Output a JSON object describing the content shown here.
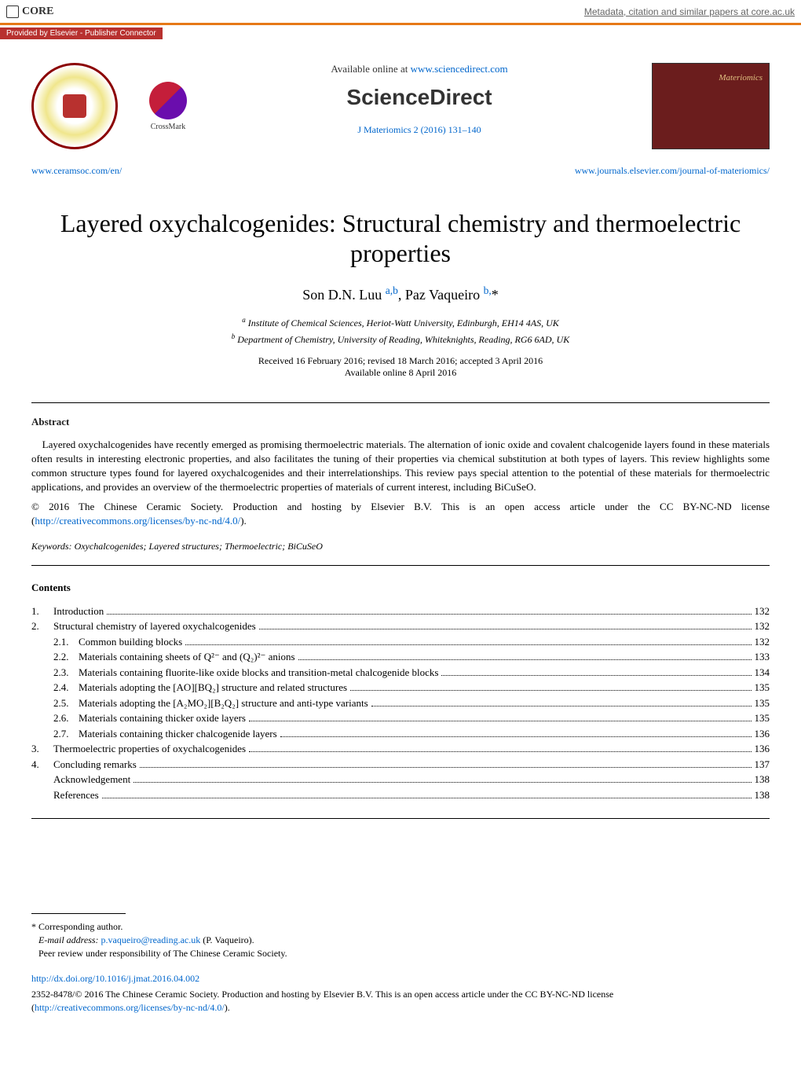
{
  "topBanner": {
    "coreLabel": "CORE",
    "metadataLink": "Metadata, citation and similar papers at core.ac.uk",
    "providedBy": "Provided by Elsevier - Publisher Connector"
  },
  "header": {
    "availableText": "Available online at ",
    "availableUrl": "www.sciencedirect.com",
    "scienceDirectLabel": "ScienceDirect",
    "journalRef": "J Materiomics 2 (2016) 131–140",
    "crossmarkLabel": "CrossMark",
    "leftLink": "www.ceramsoc.com/en/",
    "rightLink": "www.journals.elsevier.com/journal-of-materiomics/"
  },
  "article": {
    "title": "Layered oxychalcogenides: Structural chemistry and thermoelectric properties",
    "authors": {
      "author1": "Son D.N. Luu ",
      "author1aff": "a,b",
      "separator": ", ",
      "author2": "Paz Vaqueiro ",
      "author2aff": "b,",
      "corresponding": "*"
    },
    "affiliation_a": "a Institute of Chemical Sciences, Heriot-Watt University, Edinburgh, EH14 4AS, UK",
    "affiliation_b": "b Department of Chemistry, University of Reading, Whiteknights, Reading, RG6 6AD, UK",
    "dates": "Received 16 February 2016; revised 18 March 2016; accepted 3 April 2016",
    "availableOnline": "Available online 8 April 2016"
  },
  "abstract": {
    "heading": "Abstract",
    "text": "Layered oxychalcogenides have recently emerged as promising thermoelectric materials. The alternation of ionic oxide and covalent chalcogenide layers found in these materials often results in interesting electronic properties, and also facilitates the tuning of their properties via chemical substitution at both types of layers. This review highlights some common structure types found for layered oxychalcogenides and their interrelationships. This review pays special attention to the potential of these materials for thermoelectric applications, and provides an overview of the thermoelectric properties of materials of current interest, including BiCuSeO.",
    "copyright": "© 2016 The Chinese Ceramic Society. Production and hosting by Elsevier B.V. This is an open access article under the CC BY-NC-ND license (",
    "licenseUrl": "http://creativecommons.org/licenses/by-nc-nd/4.0/",
    "copyrightEnd": ")."
  },
  "keywords": {
    "label": "Keywords: ",
    "text": "Oxychalcogenides; Layered structures; Thermoelectric; BiCuSeO"
  },
  "contents": {
    "heading": "Contents",
    "items": [
      {
        "num": "1.",
        "title": "Introduction",
        "page": "132"
      },
      {
        "num": "2.",
        "title": "Structural chemistry of layered oxychalcogenides",
        "page": "132"
      },
      {
        "sub": true,
        "num": "2.1.",
        "title": "Common building blocks",
        "page": "132"
      },
      {
        "sub": true,
        "num": "2.2.",
        "title": "Materials containing sheets of Q²⁻ and (Q₂)²⁻ anions",
        "page": "133"
      },
      {
        "sub": true,
        "num": "2.3.",
        "title": "Materials containing fluorite-like oxide blocks and transition-metal chalcogenide blocks",
        "page": "134"
      },
      {
        "sub": true,
        "num": "2.4.",
        "title": "Materials adopting the [AO][BQ₂] structure and related structures",
        "page": "135"
      },
      {
        "sub": true,
        "num": "2.5.",
        "title": "Materials adopting the [A₂MO₂][B₂Q₂] structure and anti-type variants",
        "page": "135"
      },
      {
        "sub": true,
        "num": "2.6.",
        "title": "Materials containing thicker oxide layers",
        "page": "135"
      },
      {
        "sub": true,
        "num": "2.7.",
        "title": "Materials containing thicker chalcogenide layers",
        "page": "136"
      },
      {
        "num": "3.",
        "title": "Thermoelectric properties of oxychalcogenides",
        "page": "136"
      },
      {
        "num": "4.",
        "title": "Concluding remarks",
        "page": "137"
      },
      {
        "noNum": true,
        "title": "Acknowledgement",
        "page": "138"
      },
      {
        "noNum": true,
        "title": "References",
        "page": "138"
      }
    ]
  },
  "footnotes": {
    "corresponding": "* Corresponding author.",
    "emailLabel": "E-mail address: ",
    "email": "p.vaqueiro@reading.ac.uk",
    "emailSuffix": " (P. Vaqueiro).",
    "peerReview": "Peer review under responsibility of The Chinese Ceramic Society.",
    "doi": "http://dx.doi.org/10.1016/j.jmat.2016.04.002",
    "issn": "2352-8478/© 2016 The Chinese Ceramic Society. Production and hosting by Elsevier B.V. This is an open access article under the CC BY-NC-ND license (",
    "licenseUrl": "http://creativecommons.org/licenses/by-nc-nd/4.0/",
    "issnEnd": ")."
  },
  "colors": {
    "linkBlue": "#0066cc",
    "orangeBar": "#e67817",
    "redBanner": "#b8312f",
    "darkRed": "#6b1d1d"
  }
}
